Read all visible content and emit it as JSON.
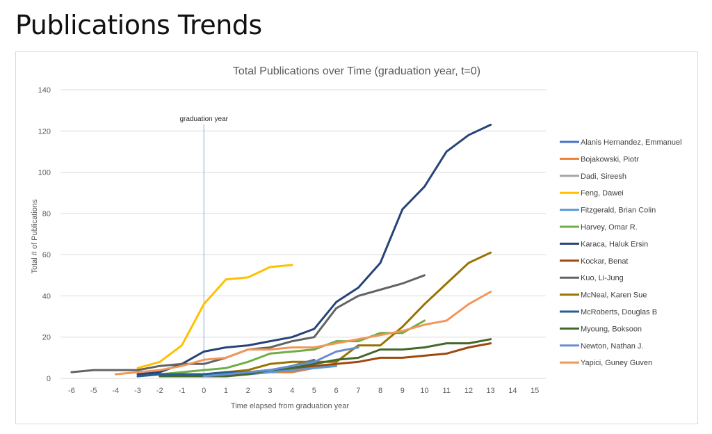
{
  "page": {
    "title": "Publications Trends"
  },
  "chart_data": {
    "type": "line",
    "title": "Total Publications over Time (graduation year, t=0)",
    "xlabel": "Time elapsed from graduation year",
    "ylabel": "Total # of Publications",
    "xlim": [
      -6,
      15
    ],
    "ylim": [
      0,
      140
    ],
    "x_ticks": [
      "-6",
      "-5",
      "-4",
      "-3",
      "-2",
      "-1",
      "0",
      "1",
      "2",
      "3",
      "4",
      "5",
      "6",
      "7",
      "8",
      "9",
      "10",
      "11",
      "12",
      "13",
      "14",
      "15"
    ],
    "y_ticks": [
      "0",
      "20",
      "40",
      "60",
      "80",
      "100",
      "120",
      "140"
    ],
    "grid": true,
    "legend_position": "right",
    "annotations": [
      {
        "text": "graduation year",
        "x": 0
      }
    ],
    "series": [
      {
        "name": "Alanis Hernandez, Emmanuel",
        "color": "#4472C4",
        "x": [
          -3,
          -2,
          -1,
          0,
          1,
          2,
          3,
          4,
          5
        ],
        "values": [
          1,
          2,
          2,
          2,
          3,
          3,
          4,
          6,
          9
        ]
      },
      {
        "name": "Bojakowski, Piotr",
        "color": "#ED7D31",
        "x": [
          -2,
          -1,
          0,
          1,
          2,
          3,
          4,
          5,
          6
        ],
        "values": [
          1,
          1,
          1,
          1,
          2,
          3,
          3,
          5,
          6
        ]
      },
      {
        "name": "Dadi, Sireesh",
        "color": "#A5A5A5",
        "x": [
          -2,
          -1,
          0,
          1,
          2,
          3,
          4
        ],
        "values": [
          1,
          1,
          1,
          2,
          2,
          3,
          4
        ]
      },
      {
        "name": "Feng, Dawei",
        "color": "#FFC000",
        "x": [
          -3,
          -2,
          -1,
          0,
          1,
          2,
          3,
          4
        ],
        "values": [
          5,
          8,
          16,
          36,
          48,
          49,
          54,
          55
        ]
      },
      {
        "name": "Fitzgerald, Brian Colin",
        "color": "#5B9BD5",
        "x": [
          -1,
          0,
          1,
          2,
          3,
          4,
          5,
          6
        ],
        "values": [
          1,
          1,
          2,
          2,
          3,
          4,
          5,
          6
        ]
      },
      {
        "name": "Harvey, Omar R.",
        "color": "#70AD47",
        "x": [
          -2,
          -1,
          0,
          1,
          2,
          3,
          4,
          5,
          6,
          7,
          8,
          9,
          10
        ],
        "values": [
          2,
          3,
          4,
          5,
          8,
          12,
          13,
          14,
          18,
          18,
          22,
          22,
          28
        ]
      },
      {
        "name": "Karaca, Haluk Ersin",
        "color": "#264478",
        "x": [
          -3,
          -2,
          -1,
          0,
          1,
          2,
          3,
          4,
          5,
          6,
          7,
          8,
          9,
          10,
          11,
          12,
          13
        ],
        "values": [
          2,
          3,
          7,
          13,
          15,
          16,
          18,
          20,
          24,
          37,
          44,
          56,
          82,
          93,
          110,
          118,
          123
        ]
      },
      {
        "name": "Kockar, Benat",
        "color": "#9E480E",
        "x": [
          0,
          1,
          2,
          3,
          4,
          5,
          6,
          7,
          8,
          9,
          10,
          11,
          12,
          13
        ],
        "values": [
          1,
          2,
          3,
          4,
          5,
          6,
          7,
          8,
          10,
          10,
          11,
          12,
          15,
          17
        ]
      },
      {
        "name": "Kuo, Li-Jung",
        "color": "#636363",
        "x": [
          -6,
          -5,
          -4,
          -3,
          -2,
          -1,
          0,
          1,
          2,
          3,
          4,
          5,
          6,
          7,
          8,
          9,
          10
        ],
        "values": [
          3,
          4,
          4,
          4,
          6,
          7,
          7,
          10,
          14,
          15,
          18,
          20,
          34,
          40,
          43,
          46,
          50
        ]
      },
      {
        "name": "McNeal, Karen Sue",
        "color": "#997300",
        "x": [
          1,
          2,
          3,
          4,
          5,
          6,
          7,
          8,
          9,
          10,
          11,
          12,
          13
        ],
        "values": [
          3,
          4,
          7,
          8,
          8,
          8,
          16,
          16,
          25,
          36,
          46,
          56,
          61
        ]
      },
      {
        "name": "McRoberts, Douglas B",
        "color": "#255E91",
        "x": [
          -3,
          -2,
          -1,
          0,
          1,
          2,
          3,
          4,
          5
        ],
        "values": [
          1,
          2,
          2,
          2,
          3,
          3,
          4,
          5,
          7
        ]
      },
      {
        "name": "Myoung, Boksoon",
        "color": "#43682B",
        "x": [
          -2,
          -1,
          0,
          1,
          2,
          3,
          4,
          5,
          6,
          7,
          8,
          9,
          10,
          11,
          12,
          13
        ],
        "values": [
          1,
          1,
          1,
          1,
          2,
          4,
          5,
          7,
          9,
          10,
          14,
          14,
          15,
          17,
          17,
          19
        ]
      },
      {
        "name": "Newton, Nathan J.",
        "color": "#698ED0",
        "x": [
          0,
          1,
          2,
          3,
          4,
          5,
          6,
          7
        ],
        "values": [
          1,
          2,
          3,
          4,
          6,
          8,
          13,
          15
        ]
      },
      {
        "name": "Yapici, Guney Guven",
        "color": "#F1975A",
        "x": [
          -4,
          -3,
          -2,
          -1,
          0,
          1,
          2,
          3,
          4,
          5,
          6,
          7,
          8,
          9,
          10,
          11,
          12,
          13
        ],
        "values": [
          2,
          3,
          4,
          6,
          9,
          10,
          14,
          14,
          15,
          15,
          17,
          19,
          21,
          23,
          26,
          28,
          36,
          42
        ]
      }
    ]
  }
}
